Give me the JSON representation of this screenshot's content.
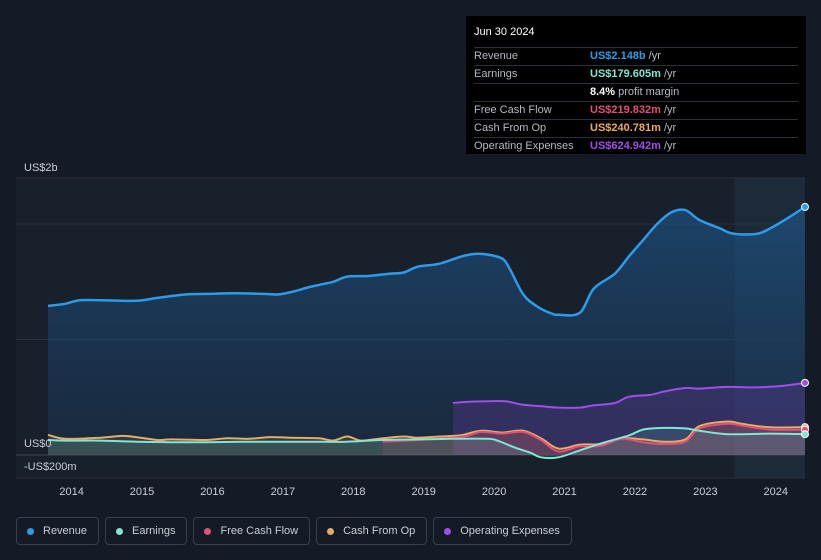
{
  "tooltip": {
    "date": "Jun 30 2024",
    "rows": [
      {
        "label": "Revenue",
        "value": "US$2.148b",
        "unit": "/yr",
        "color": "#2d9be8"
      },
      {
        "label": "Earnings",
        "value": "US$179.605m",
        "unit": "/yr",
        "color": "#7fe7d4"
      },
      {
        "label": "",
        "value": "8.4%",
        "unit": "profit margin",
        "color": "#ffffff"
      },
      {
        "label": "Free Cash Flow",
        "value": "US$219.832m",
        "unit": "/yr",
        "color": "#e0507a"
      },
      {
        "label": "Cash From Op",
        "value": "US$240.781m",
        "unit": "/yr",
        "color": "#e9ab62"
      },
      {
        "label": "Operating Expenses",
        "value": "US$624.942m",
        "unit": "/yr",
        "color": "#a04ee8"
      }
    ]
  },
  "legend": [
    {
      "label": "Revenue",
      "color": "#2d9be8"
    },
    {
      "label": "Earnings",
      "color": "#7fe7d4"
    },
    {
      "label": "Free Cash Flow",
      "color": "#e0507a"
    },
    {
      "label": "Cash From Op",
      "color": "#e9ab62"
    },
    {
      "label": "Operating Expenses",
      "color": "#a04ee8"
    }
  ],
  "chart_data": {
    "type": "area",
    "title": "",
    "units": "US$ millions",
    "y_labels": {
      "top": "US$2b",
      "zero": "US$0",
      "bottom": "-US$200m"
    },
    "ylim": [
      -200,
      2400
    ],
    "xlim": [
      2013.75,
      2024.5
    ],
    "x_ticks": [
      2014,
      2015,
      2016,
      2017,
      2018,
      2019,
      2020,
      2021,
      2022,
      2023,
      2024
    ],
    "x_tick_labels": [
      "2014",
      "2015",
      "2016",
      "2017",
      "2018",
      "2019",
      "2020",
      "2021",
      "2022",
      "2023",
      "2024"
    ],
    "forecast_start": 2023.5,
    "series": [
      {
        "name": "Revenue",
        "color": "#2d9be8",
        "points": [
          [
            2013.75,
            1290
          ],
          [
            2014.0,
            1310
          ],
          [
            2014.2,
            1340
          ],
          [
            2014.5,
            1340
          ],
          [
            2015.0,
            1335
          ],
          [
            2015.3,
            1360
          ],
          [
            2015.7,
            1390
          ],
          [
            2016.0,
            1395
          ],
          [
            2016.4,
            1400
          ],
          [
            2016.8,
            1395
          ],
          [
            2017.0,
            1390
          ],
          [
            2017.2,
            1410
          ],
          [
            2017.5,
            1460
          ],
          [
            2017.8,
            1500
          ],
          [
            2018.0,
            1545
          ],
          [
            2018.3,
            1550
          ],
          [
            2018.6,
            1570
          ],
          [
            2018.8,
            1580
          ],
          [
            2019.0,
            1630
          ],
          [
            2019.3,
            1655
          ],
          [
            2019.6,
            1715
          ],
          [
            2019.8,
            1740
          ],
          [
            2020.0,
            1735
          ],
          [
            2020.2,
            1700
          ],
          [
            2020.3,
            1620
          ],
          [
            2020.5,
            1390
          ],
          [
            2020.7,
            1285
          ],
          [
            2020.9,
            1225
          ],
          [
            2021.0,
            1215
          ],
          [
            2021.3,
            1230
          ],
          [
            2021.5,
            1440
          ],
          [
            2021.8,
            1570
          ],
          [
            2022.0,
            1720
          ],
          [
            2022.2,
            1860
          ],
          [
            2022.4,
            2000
          ],
          [
            2022.6,
            2100
          ],
          [
            2022.8,
            2120
          ],
          [
            2023.0,
            2035
          ],
          [
            2023.3,
            1960
          ],
          [
            2023.45,
            1920
          ],
          [
            2023.7,
            1910
          ],
          [
            2023.9,
            1930
          ],
          [
            2024.2,
            2030
          ],
          [
            2024.5,
            2148
          ]
        ]
      },
      {
        "name": "Earnings",
        "color": "#7fe7d4",
        "points": [
          [
            2013.75,
            130
          ],
          [
            2014.0,
            125
          ],
          [
            2014.5,
            125
          ],
          [
            2015.0,
            115
          ],
          [
            2015.5,
            110
          ],
          [
            2016.0,
            110
          ],
          [
            2016.5,
            115
          ],
          [
            2017.0,
            115
          ],
          [
            2017.5,
            115
          ],
          [
            2018.0,
            115
          ],
          [
            2018.5,
            130
          ],
          [
            2019.0,
            135
          ],
          [
            2019.5,
            140
          ],
          [
            2020.0,
            140
          ],
          [
            2020.15,
            120
          ],
          [
            2020.4,
            60
          ],
          [
            2020.6,
            20
          ],
          [
            2020.75,
            -20
          ],
          [
            2021.0,
            -20
          ],
          [
            2021.3,
            40
          ],
          [
            2021.6,
            100
          ],
          [
            2022.0,
            170
          ],
          [
            2022.2,
            220
          ],
          [
            2022.5,
            235
          ],
          [
            2022.8,
            230
          ],
          [
            2023.0,
            210
          ],
          [
            2023.4,
            180
          ],
          [
            2024.0,
            185
          ],
          [
            2024.5,
            180
          ]
        ]
      },
      {
        "name": "Free Cash Flow",
        "color": "#e0507a",
        "points": [
          [
            2018.5,
            115
          ],
          [
            2019.0,
            130
          ],
          [
            2019.5,
            150
          ],
          [
            2019.7,
            165
          ],
          [
            2019.9,
            200
          ],
          [
            2020.2,
            185
          ],
          [
            2020.5,
            200
          ],
          [
            2020.75,
            130
          ],
          [
            2021.0,
            30
          ],
          [
            2021.3,
            75
          ],
          [
            2021.6,
            80
          ],
          [
            2021.9,
            140
          ],
          [
            2022.2,
            110
          ],
          [
            2022.5,
            95
          ],
          [
            2022.8,
            115
          ],
          [
            2023.0,
            230
          ],
          [
            2023.4,
            270
          ],
          [
            2023.6,
            255
          ],
          [
            2024.0,
            220
          ],
          [
            2024.5,
            220
          ]
        ]
      },
      {
        "name": "Cash From Op",
        "color": "#e9ab62",
        "points": [
          [
            2013.75,
            175
          ],
          [
            2014.0,
            140
          ],
          [
            2014.5,
            150
          ],
          [
            2014.8,
            165
          ],
          [
            2015.0,
            155
          ],
          [
            2015.3,
            130
          ],
          [
            2015.5,
            135
          ],
          [
            2016.0,
            130
          ],
          [
            2016.3,
            145
          ],
          [
            2016.6,
            140
          ],
          [
            2016.9,
            155
          ],
          [
            2017.2,
            150
          ],
          [
            2017.6,
            145
          ],
          [
            2017.8,
            125
          ],
          [
            2018.0,
            160
          ],
          [
            2018.2,
            125
          ],
          [
            2018.5,
            145
          ],
          [
            2018.8,
            160
          ],
          [
            2019.0,
            150
          ],
          [
            2019.3,
            160
          ],
          [
            2019.6,
            170
          ],
          [
            2019.9,
            210
          ],
          [
            2020.2,
            195
          ],
          [
            2020.5,
            210
          ],
          [
            2020.75,
            145
          ],
          [
            2021.0,
            55
          ],
          [
            2021.3,
            90
          ],
          [
            2021.6,
            95
          ],
          [
            2021.9,
            145
          ],
          [
            2022.2,
            135
          ],
          [
            2022.5,
            115
          ],
          [
            2022.8,
            135
          ],
          [
            2023.0,
            250
          ],
          [
            2023.4,
            290
          ],
          [
            2023.6,
            270
          ],
          [
            2024.0,
            240
          ],
          [
            2024.5,
            241
          ]
        ]
      },
      {
        "name": "Operating Expenses",
        "color": "#a04ee8",
        "points": [
          [
            2019.5,
            450
          ],
          [
            2019.7,
            460
          ],
          [
            2020.0,
            465
          ],
          [
            2020.25,
            465
          ],
          [
            2020.5,
            435
          ],
          [
            2020.8,
            420
          ],
          [
            2021.0,
            410
          ],
          [
            2021.3,
            410
          ],
          [
            2021.5,
            430
          ],
          [
            2021.8,
            450
          ],
          [
            2022.0,
            505
          ],
          [
            2022.3,
            520
          ],
          [
            2022.5,
            550
          ],
          [
            2022.8,
            580
          ],
          [
            2023.0,
            575
          ],
          [
            2023.4,
            590
          ],
          [
            2023.8,
            585
          ],
          [
            2024.2,
            600
          ],
          [
            2024.5,
            625
          ]
        ]
      }
    ]
  }
}
